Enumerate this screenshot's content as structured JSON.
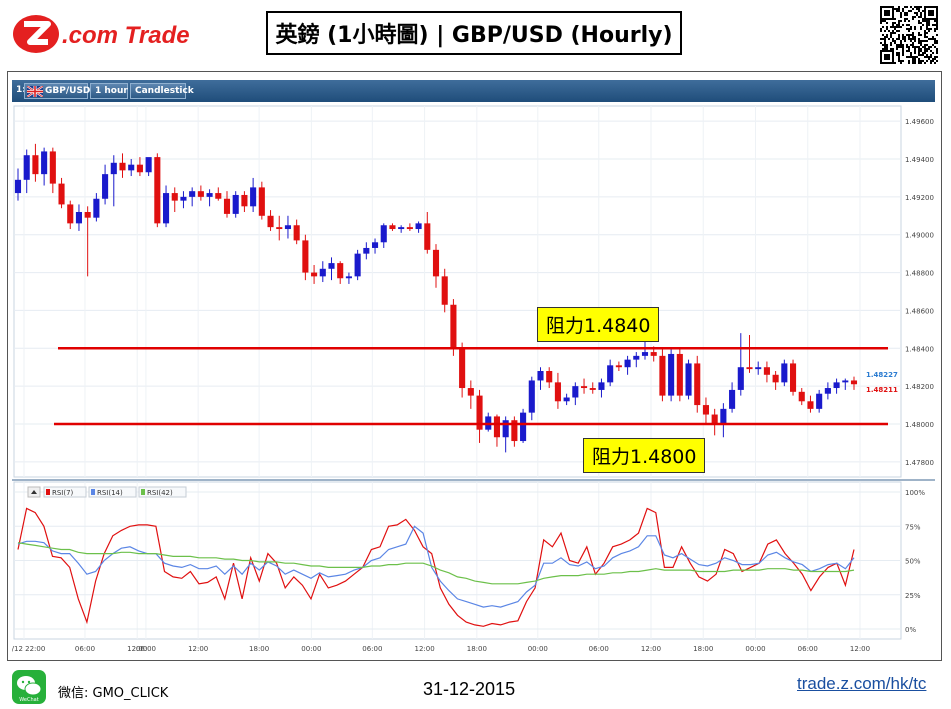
{
  "header": {
    "logo_text": "Z.com Trade",
    "title": "英鎊 (1小時圖) | GBP/USD  (Hourly)"
  },
  "toolbar": {
    "index": "1:",
    "symbol": "GBP/USD",
    "timeframe": "1 hour",
    "chart_style": "Candlestick"
  },
  "annotations": {
    "resistance_upper": "阻力1.4840",
    "resistance_lower": "阻力1.4800"
  },
  "footer": {
    "wechat_icon_label": "WeChat",
    "wechat_id": "微信: GMO_CLICK",
    "date": "31-12-2015",
    "site": "trade.z.com/hk/tc"
  },
  "colors": {
    "up_candle": "#1a1acc",
    "down_candle": "#e01010",
    "resistance_line": "#e00000",
    "rsi7": "#e01010",
    "rsi14": "#5b86e5",
    "rsi42": "#6cc04a",
    "toolbar": "#2a5985"
  },
  "chart_data": [
    {
      "type": "candlestick",
      "symbol": "GBP/USD",
      "timeframe": "1 hour",
      "y_ticks": [
        "1.49600",
        "1.49400",
        "1.49200",
        "1.49000",
        "1.48800",
        "1.48600",
        "1.48400",
        "1.48200",
        "1.48000",
        "1.47800"
      ],
      "ylim": [
        1.4772,
        1.4968
      ],
      "x_ticks": [
        "24/12 22:00",
        "06:00",
        "12:00",
        "06:00",
        "12:00",
        "18:00",
        "00:00",
        "06:00",
        "12:00",
        "18:00",
        "00:00",
        "06:00",
        "12:00",
        "18:00",
        "00:00",
        "06:00",
        "12:00"
      ],
      "last_prices": {
        "ask": "1.48227",
        "bid": "1.48211"
      },
      "horizontal_lines": [
        {
          "label": "阻力1.4840",
          "value": 1.484
        },
        {
          "label": "阻力1.4800",
          "value": 1.48
        }
      ],
      "candles": [
        {
          "o": 1.4922,
          "h": 1.4935,
          "l": 1.4918,
          "c": 1.4929
        },
        {
          "o": 1.4929,
          "h": 1.4945,
          "l": 1.4922,
          "c": 1.4942
        },
        {
          "o": 1.4942,
          "h": 1.4948,
          "l": 1.4928,
          "c": 1.4932
        },
        {
          "o": 1.4932,
          "h": 1.4946,
          "l": 1.4926,
          "c": 1.4944
        },
        {
          "o": 1.4944,
          "h": 1.4946,
          "l": 1.4922,
          "c": 1.4927
        },
        {
          "o": 1.4927,
          "h": 1.493,
          "l": 1.4914,
          "c": 1.4916
        },
        {
          "o": 1.4916,
          "h": 1.4918,
          "l": 1.4903,
          "c": 1.4906
        },
        {
          "o": 1.4906,
          "h": 1.4916,
          "l": 1.4902,
          "c": 1.4912
        },
        {
          "o": 1.4912,
          "h": 1.4915,
          "l": 1.4878,
          "c": 1.4909
        },
        {
          "o": 1.4909,
          "h": 1.4922,
          "l": 1.4907,
          "c": 1.4919
        },
        {
          "o": 1.4919,
          "h": 1.4937,
          "l": 1.4916,
          "c": 1.4932
        },
        {
          "o": 1.4932,
          "h": 1.4942,
          "l": 1.4915,
          "c": 1.4938
        },
        {
          "o": 1.4938,
          "h": 1.4943,
          "l": 1.493,
          "c": 1.4934
        },
        {
          "o": 1.4934,
          "h": 1.494,
          "l": 1.4931,
          "c": 1.4937
        },
        {
          "o": 1.4937,
          "h": 1.4941,
          "l": 1.4931,
          "c": 1.4933
        },
        {
          "o": 1.4933,
          "h": 1.494,
          "l": 1.4931,
          "c": 1.4941
        },
        {
          "o": 1.4941,
          "h": 1.4943,
          "l": 1.4904,
          "c": 1.4906
        },
        {
          "o": 1.4906,
          "h": 1.4926,
          "l": 1.4904,
          "c": 1.4922
        },
        {
          "o": 1.4922,
          "h": 1.4925,
          "l": 1.4912,
          "c": 1.4918
        },
        {
          "o": 1.4918,
          "h": 1.4923,
          "l": 1.4914,
          "c": 1.492
        },
        {
          "o": 1.492,
          "h": 1.4925,
          "l": 1.4915,
          "c": 1.4923
        },
        {
          "o": 1.4923,
          "h": 1.4926,
          "l": 1.4918,
          "c": 1.492
        },
        {
          "o": 1.492,
          "h": 1.4924,
          "l": 1.4915,
          "c": 1.4922
        },
        {
          "o": 1.4922,
          "h": 1.4925,
          "l": 1.4918,
          "c": 1.4919
        },
        {
          "o": 1.4919,
          "h": 1.4923,
          "l": 1.4909,
          "c": 1.4911
        },
        {
          "o": 1.4911,
          "h": 1.4923,
          "l": 1.4909,
          "c": 1.4921
        },
        {
          "o": 1.4921,
          "h": 1.4923,
          "l": 1.4912,
          "c": 1.4915
        },
        {
          "o": 1.4915,
          "h": 1.493,
          "l": 1.4912,
          "c": 1.4925
        },
        {
          "o": 1.4925,
          "h": 1.4928,
          "l": 1.4908,
          "c": 1.491
        },
        {
          "o": 1.491,
          "h": 1.4913,
          "l": 1.4902,
          "c": 1.4904
        },
        {
          "o": 1.4904,
          "h": 1.491,
          "l": 1.4897,
          "c": 1.4903
        },
        {
          "o": 1.4903,
          "h": 1.491,
          "l": 1.4898,
          "c": 1.4905
        },
        {
          "o": 1.4905,
          "h": 1.4908,
          "l": 1.4895,
          "c": 1.4897
        },
        {
          "o": 1.4897,
          "h": 1.49,
          "l": 1.4876,
          "c": 1.488
        },
        {
          "o": 1.488,
          "h": 1.4884,
          "l": 1.4874,
          "c": 1.4878
        },
        {
          "o": 1.4878,
          "h": 1.4886,
          "l": 1.4875,
          "c": 1.4882
        },
        {
          "o": 1.4882,
          "h": 1.4888,
          "l": 1.4876,
          "c": 1.4885
        },
        {
          "o": 1.4885,
          "h": 1.4886,
          "l": 1.4874,
          "c": 1.4877
        },
        {
          "o": 1.4877,
          "h": 1.488,
          "l": 1.4874,
          "c": 1.4878
        },
        {
          "o": 1.4878,
          "h": 1.4892,
          "l": 1.4876,
          "c": 1.489
        },
        {
          "o": 1.489,
          "h": 1.4896,
          "l": 1.4887,
          "c": 1.4893
        },
        {
          "o": 1.4893,
          "h": 1.4898,
          "l": 1.489,
          "c": 1.4896
        },
        {
          "o": 1.4896,
          "h": 1.4906,
          "l": 1.4893,
          "c": 1.4905
        },
        {
          "o": 1.4905,
          "h": 1.4906,
          "l": 1.4902,
          "c": 1.4903
        },
        {
          "o": 1.4903,
          "h": 1.4905,
          "l": 1.4901,
          "c": 1.4904
        },
        {
          "o": 1.4904,
          "h": 1.4906,
          "l": 1.4902,
          "c": 1.4903
        },
        {
          "o": 1.4903,
          "h": 1.4907,
          "l": 1.4901,
          "c": 1.4906
        },
        {
          "o": 1.4906,
          "h": 1.4912,
          "l": 1.489,
          "c": 1.4892
        },
        {
          "o": 1.4892,
          "h": 1.4895,
          "l": 1.4872,
          "c": 1.4878
        },
        {
          "o": 1.4878,
          "h": 1.4882,
          "l": 1.4859,
          "c": 1.4863
        },
        {
          "o": 1.4863,
          "h": 1.4866,
          "l": 1.4836,
          "c": 1.484
        },
        {
          "o": 1.484,
          "h": 1.4843,
          "l": 1.4814,
          "c": 1.4819
        },
        {
          "o": 1.4819,
          "h": 1.4823,
          "l": 1.4808,
          "c": 1.4815
        },
        {
          "o": 1.4815,
          "h": 1.4818,
          "l": 1.479,
          "c": 1.4797
        },
        {
          "o": 1.4797,
          "h": 1.4806,
          "l": 1.4796,
          "c": 1.4804
        },
        {
          "o": 1.4804,
          "h": 1.4805,
          "l": 1.4788,
          "c": 1.4793
        },
        {
          "o": 1.4793,
          "h": 1.4804,
          "l": 1.4785,
          "c": 1.4802
        },
        {
          "o": 1.4802,
          "h": 1.4804,
          "l": 1.4788,
          "c": 1.4791
        },
        {
          "o": 1.4791,
          "h": 1.4808,
          "l": 1.479,
          "c": 1.4806
        },
        {
          "o": 1.4806,
          "h": 1.4825,
          "l": 1.4802,
          "c": 1.4823
        },
        {
          "o": 1.4823,
          "h": 1.483,
          "l": 1.4818,
          "c": 1.4828
        },
        {
          "o": 1.4828,
          "h": 1.483,
          "l": 1.4819,
          "c": 1.4822
        },
        {
          "o": 1.4822,
          "h": 1.4827,
          "l": 1.4808,
          "c": 1.4812
        },
        {
          "o": 1.4812,
          "h": 1.4816,
          "l": 1.481,
          "c": 1.4814
        },
        {
          "o": 1.4814,
          "h": 1.4822,
          "l": 1.481,
          "c": 1.482
        },
        {
          "o": 1.482,
          "h": 1.4824,
          "l": 1.4816,
          "c": 1.4819
        },
        {
          "o": 1.4819,
          "h": 1.4822,
          "l": 1.4816,
          "c": 1.4818
        },
        {
          "o": 1.4818,
          "h": 1.4824,
          "l": 1.4814,
          "c": 1.4822
        },
        {
          "o": 1.4822,
          "h": 1.4834,
          "l": 1.482,
          "c": 1.4831
        },
        {
          "o": 1.4831,
          "h": 1.4833,
          "l": 1.4828,
          "c": 1.483
        },
        {
          "o": 1.483,
          "h": 1.4836,
          "l": 1.4826,
          "c": 1.4834
        },
        {
          "o": 1.4834,
          "h": 1.4838,
          "l": 1.483,
          "c": 1.4836
        },
        {
          "o": 1.4836,
          "h": 1.4844,
          "l": 1.4834,
          "c": 1.4838
        },
        {
          "o": 1.4838,
          "h": 1.4841,
          "l": 1.4833,
          "c": 1.4836
        },
        {
          "o": 1.4836,
          "h": 1.484,
          "l": 1.4812,
          "c": 1.4815
        },
        {
          "o": 1.4815,
          "h": 1.484,
          "l": 1.4812,
          "c": 1.4837
        },
        {
          "o": 1.4837,
          "h": 1.484,
          "l": 1.4812,
          "c": 1.4815
        },
        {
          "o": 1.4815,
          "h": 1.4834,
          "l": 1.4813,
          "c": 1.4832
        },
        {
          "o": 1.4832,
          "h": 1.4836,
          "l": 1.4806,
          "c": 1.481
        },
        {
          "o": 1.481,
          "h": 1.4814,
          "l": 1.48,
          "c": 1.4805
        },
        {
          "o": 1.4805,
          "h": 1.4808,
          "l": 1.4794,
          "c": 1.48
        },
        {
          "o": 1.48,
          "h": 1.4811,
          "l": 1.4793,
          "c": 1.4808
        },
        {
          "o": 1.4808,
          "h": 1.4822,
          "l": 1.4806,
          "c": 1.4818
        },
        {
          "o": 1.4818,
          "h": 1.4848,
          "l": 1.4815,
          "c": 1.483
        },
        {
          "o": 1.483,
          "h": 1.4847,
          "l": 1.4827,
          "c": 1.4829
        },
        {
          "o": 1.4829,
          "h": 1.4833,
          "l": 1.4826,
          "c": 1.483
        },
        {
          "o": 1.483,
          "h": 1.4833,
          "l": 1.4822,
          "c": 1.4826
        },
        {
          "o": 1.4826,
          "h": 1.4828,
          "l": 1.4818,
          "c": 1.4822
        },
        {
          "o": 1.4822,
          "h": 1.4834,
          "l": 1.482,
          "c": 1.4832
        },
        {
          "o": 1.4832,
          "h": 1.4834,
          "l": 1.4815,
          "c": 1.4817
        },
        {
          "o": 1.4817,
          "h": 1.4819,
          "l": 1.481,
          "c": 1.4812
        },
        {
          "o": 1.4812,
          "h": 1.4815,
          "l": 1.4806,
          "c": 1.4808
        },
        {
          "o": 1.4808,
          "h": 1.4818,
          "l": 1.4806,
          "c": 1.4816
        },
        {
          "o": 1.4816,
          "h": 1.4822,
          "l": 1.4813,
          "c": 1.4819
        },
        {
          "o": 1.4819,
          "h": 1.4824,
          "l": 1.4816,
          "c": 1.4822
        },
        {
          "o": 1.4822,
          "h": 1.4824,
          "l": 1.4818,
          "c": 1.4823
        },
        {
          "o": 1.4823,
          "h": 1.4825,
          "l": 1.4818,
          "c": 1.4821
        }
      ]
    },
    {
      "type": "line",
      "title": "RSI",
      "y_ticks": [
        "100%",
        "75%",
        "50%",
        "25%",
        "0%"
      ],
      "ylim": [
        0,
        100
      ],
      "legend": [
        "RSI(7)",
        "RSI(14)",
        "RSI(42)"
      ],
      "series": [
        {
          "name": "RSI(7)",
          "values": [
            58,
            88,
            85,
            75,
            53,
            52,
            45,
            22,
            5,
            35,
            55,
            68,
            72,
            75,
            76,
            76,
            75,
            42,
            38,
            37,
            42,
            33,
            34,
            38,
            22,
            48,
            22,
            52,
            35,
            55,
            48,
            30,
            38,
            32,
            22,
            40,
            30,
            32,
            35,
            40,
            45,
            58,
            60,
            75,
            76,
            80,
            72,
            60,
            55,
            30,
            18,
            10,
            5,
            3,
            2,
            4,
            3,
            5,
            6,
            20,
            30,
            65,
            60,
            70,
            50,
            48,
            60,
            40,
            48,
            60,
            62,
            65,
            70,
            88,
            85,
            45,
            45,
            60,
            48,
            38,
            35,
            40,
            58,
            55,
            42,
            45,
            48,
            62,
            65,
            55,
            48,
            40,
            28,
            38,
            45,
            48,
            32,
            58
          ]
        },
        {
          "name": "RSI(14)",
          "values": [
            62,
            64,
            64,
            63,
            57,
            55,
            55,
            48,
            40,
            42,
            50,
            55,
            59,
            60,
            57,
            55,
            55,
            48,
            46,
            45,
            47,
            44,
            44,
            46,
            40,
            46,
            40,
            48,
            43,
            49,
            46,
            40,
            43,
            40,
            37,
            41,
            38,
            39,
            40,
            43,
            45,
            50,
            52,
            58,
            60,
            62,
            75,
            70,
            45,
            35,
            28,
            22,
            20,
            18,
            16,
            17,
            16,
            18,
            20,
            27,
            32,
            48,
            48,
            52,
            47,
            46,
            49,
            44,
            46,
            52,
            55,
            57,
            60,
            68,
            68,
            54,
            52,
            55,
            51,
            47,
            46,
            48,
            52,
            50,
            47,
            47,
            48,
            54,
            56,
            52,
            49,
            47,
            42,
            44,
            47,
            48,
            44,
            52
          ]
        },
        {
          "name": "RSI(42)",
          "values": [
            63,
            62,
            61,
            60,
            59,
            58,
            58,
            56,
            55,
            55,
            55,
            55,
            56,
            56,
            55,
            55,
            55,
            54,
            53,
            53,
            53,
            52,
            52,
            52,
            51,
            51,
            50,
            50,
            49,
            49,
            49,
            48,
            48,
            47,
            46,
            46,
            45,
            45,
            45,
            45,
            45,
            46,
            46,
            47,
            47,
            48,
            48,
            48,
            46,
            43,
            41,
            38,
            37,
            35,
            34,
            33,
            33,
            33,
            33,
            34,
            35,
            37,
            38,
            39,
            39,
            39,
            40,
            40,
            40,
            41,
            41,
            42,
            42,
            43,
            44,
            43,
            43,
            43,
            43,
            42,
            42,
            42,
            42,
            43,
            43,
            43,
            43,
            44,
            44,
            44,
            43,
            43,
            42,
            42,
            42,
            42,
            42,
            43
          ]
        }
      ]
    }
  ]
}
